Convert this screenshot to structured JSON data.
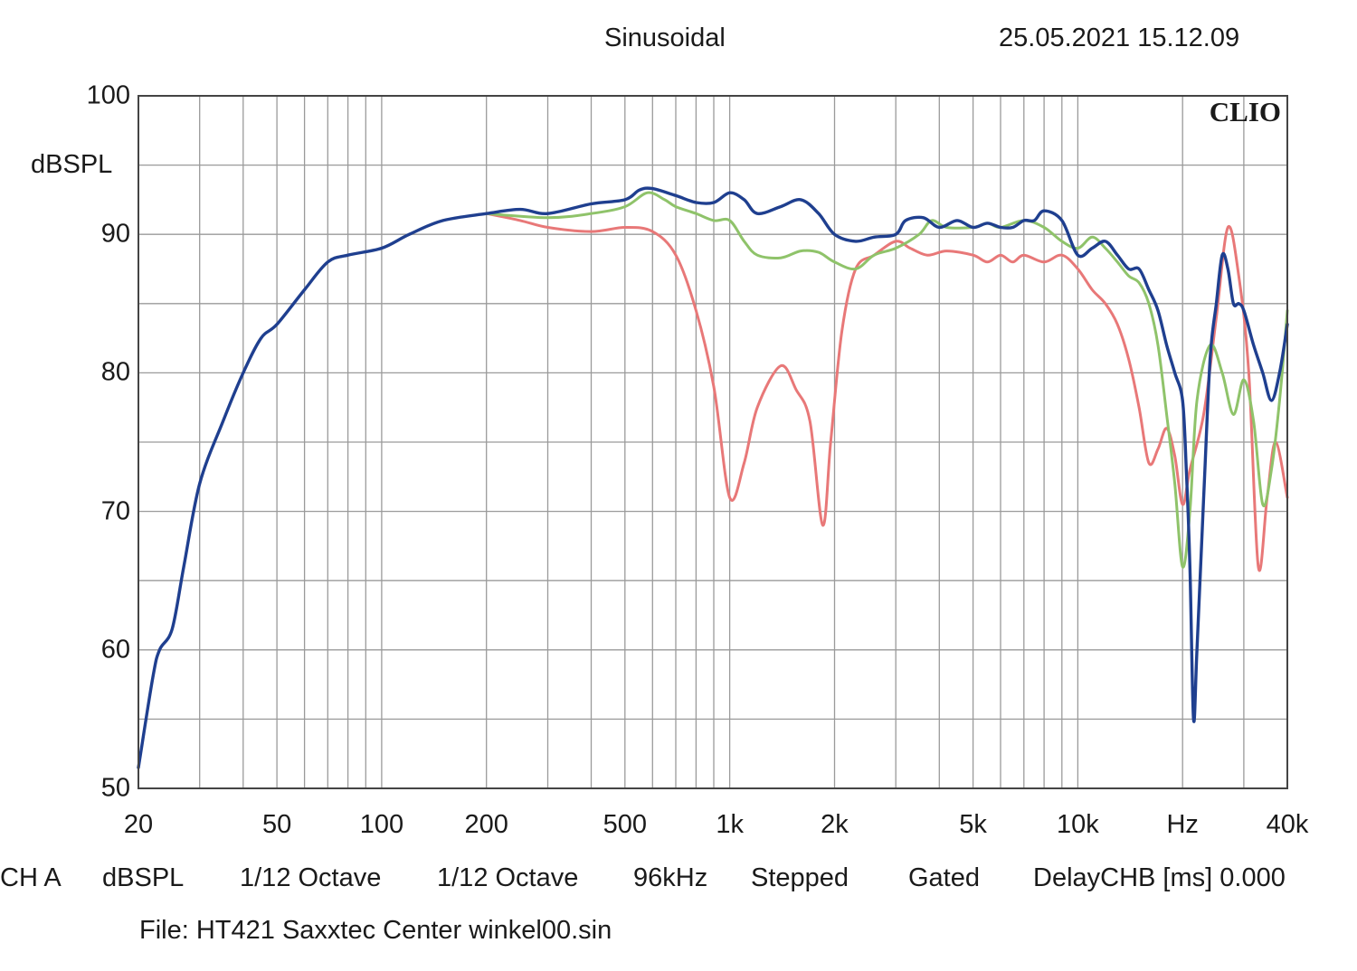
{
  "header": {
    "title": "Sinusoidal",
    "timestamp": "25.05.2021 15.12.09",
    "brand": "CLIO"
  },
  "footer": {
    "items": [
      "CH A",
      "dBSPL",
      "1/12 Octave",
      "1/12 Octave",
      "96kHz",
      "Stepped",
      "Gated",
      "DelayCHB [ms] 0.000"
    ],
    "file": "File: HT421 Saxxtec Center winkel00.sin"
  },
  "chart_data": {
    "type": "line",
    "title": "Sinusoidal",
    "xlabel": "Hz",
    "ylabel": "dBSPL",
    "xscale": "log",
    "xlim": [
      20,
      40000
    ],
    "ylim": [
      50,
      100
    ],
    "grid": true,
    "ytick_labels": [
      "100",
      "90",
      "80",
      "70",
      "60",
      "50"
    ],
    "ytick_values": [
      100,
      90,
      80,
      70,
      60,
      50
    ],
    "xtick_labels": [
      "20",
      "50",
      "100",
      "200",
      "500",
      "1k",
      "2k",
      "5k",
      "10k",
      "Hz",
      "40k"
    ],
    "xtick_values": [
      20,
      50,
      100,
      200,
      500,
      1000,
      2000,
      5000,
      10000,
      20000,
      40000
    ],
    "series": [
      {
        "color": "#e87878",
        "points": [
          [
            200,
            91.5
          ],
          [
            250,
            91.0
          ],
          [
            300,
            90.5
          ],
          [
            400,
            90.2
          ],
          [
            500,
            90.5
          ],
          [
            600,
            90.2
          ],
          [
            700,
            88.5
          ],
          [
            800,
            84.5
          ],
          [
            900,
            79
          ],
          [
            1000,
            71
          ],
          [
            1100,
            73.5
          ],
          [
            1200,
            77.5
          ],
          [
            1400,
            80.5
          ],
          [
            1550,
            78.8
          ],
          [
            1700,
            76.5
          ],
          [
            1850,
            69
          ],
          [
            1950,
            75
          ],
          [
            2100,
            83
          ],
          [
            2300,
            87.5
          ],
          [
            2600,
            88.5
          ],
          [
            3000,
            89.5
          ],
          [
            3300,
            89
          ],
          [
            3700,
            88.5
          ],
          [
            4200,
            88.8
          ],
          [
            5000,
            88.5
          ],
          [
            5500,
            88
          ],
          [
            6000,
            88.5
          ],
          [
            6500,
            88
          ],
          [
            7000,
            88.5
          ],
          [
            8000,
            88
          ],
          [
            9000,
            88.5
          ],
          [
            10000,
            87.5
          ],
          [
            11000,
            86
          ],
          [
            12000,
            85
          ],
          [
            13000,
            83.5
          ],
          [
            14000,
            81
          ],
          [
            15000,
            77.5
          ],
          [
            16000,
            73.5
          ],
          [
            17000,
            74.5
          ],
          [
            18000,
            76
          ],
          [
            19000,
            74
          ],
          [
            20000,
            70.5
          ],
          [
            21000,
            73
          ],
          [
            23000,
            77
          ],
          [
            25000,
            84
          ],
          [
            27000,
            90.5
          ],
          [
            29000,
            87
          ],
          [
            31000,
            80
          ],
          [
            33000,
            66
          ],
          [
            35000,
            71
          ],
          [
            37000,
            75
          ],
          [
            40000,
            71
          ]
        ]
      },
      {
        "color": "#8fc36a",
        "points": [
          [
            200,
            91.5
          ],
          [
            300,
            91.2
          ],
          [
            400,
            91.5
          ],
          [
            500,
            92
          ],
          [
            580,
            93
          ],
          [
            650,
            92.5
          ],
          [
            700,
            92
          ],
          [
            800,
            91.5
          ],
          [
            900,
            91
          ],
          [
            1000,
            91
          ],
          [
            1100,
            89.5
          ],
          [
            1200,
            88.5
          ],
          [
            1400,
            88.3
          ],
          [
            1600,
            88.8
          ],
          [
            1800,
            88.7
          ],
          [
            2000,
            88
          ],
          [
            2300,
            87.5
          ],
          [
            2600,
            88.5
          ],
          [
            3000,
            89
          ],
          [
            3500,
            90
          ],
          [
            3800,
            91
          ],
          [
            4200,
            90.5
          ],
          [
            5000,
            90.5
          ],
          [
            5500,
            90.8
          ],
          [
            6000,
            90.5
          ],
          [
            7000,
            91
          ],
          [
            8000,
            90.5
          ],
          [
            9000,
            89.5
          ],
          [
            10000,
            89
          ],
          [
            11000,
            89.8
          ],
          [
            12000,
            89
          ],
          [
            13000,
            88
          ],
          [
            14000,
            87
          ],
          [
            15000,
            86.5
          ],
          [
            16000,
            85
          ],
          [
            17000,
            82
          ],
          [
            18000,
            77
          ],
          [
            19000,
            72
          ],
          [
            20000,
            66
          ],
          [
            21000,
            70
          ],
          [
            22000,
            78
          ],
          [
            24000,
            82
          ],
          [
            26000,
            80
          ],
          [
            28000,
            77
          ],
          [
            30000,
            79.5
          ],
          [
            32000,
            76.5
          ],
          [
            34000,
            70.5
          ],
          [
            36000,
            73
          ],
          [
            38000,
            78
          ],
          [
            40000,
            84.5
          ]
        ]
      },
      {
        "color": "#1f3f8f",
        "points": [
          [
            20,
            51.5
          ],
          [
            22,
            58
          ],
          [
            23,
            60
          ],
          [
            25,
            61.5
          ],
          [
            27,
            66
          ],
          [
            30,
            72
          ],
          [
            35,
            76.5
          ],
          [
            40,
            80
          ],
          [
            45,
            82.5
          ],
          [
            50,
            83.5
          ],
          [
            60,
            86
          ],
          [
            70,
            88
          ],
          [
            80,
            88.5
          ],
          [
            100,
            89
          ],
          [
            120,
            90
          ],
          [
            150,
            91
          ],
          [
            200,
            91.5
          ],
          [
            250,
            91.8
          ],
          [
            300,
            91.5
          ],
          [
            400,
            92.2
          ],
          [
            500,
            92.5
          ],
          [
            550,
            93.2
          ],
          [
            600,
            93.3
          ],
          [
            700,
            92.8
          ],
          [
            800,
            92.3
          ],
          [
            900,
            92.3
          ],
          [
            1000,
            93
          ],
          [
            1100,
            92.5
          ],
          [
            1200,
            91.5
          ],
          [
            1400,
            92
          ],
          [
            1600,
            92.5
          ],
          [
            1800,
            91.5
          ],
          [
            2000,
            90
          ],
          [
            2300,
            89.5
          ],
          [
            2600,
            89.8
          ],
          [
            3000,
            90
          ],
          [
            3200,
            91
          ],
          [
            3600,
            91.2
          ],
          [
            4000,
            90.5
          ],
          [
            4500,
            91
          ],
          [
            5000,
            90.5
          ],
          [
            5500,
            90.8
          ],
          [
            6000,
            90.5
          ],
          [
            6500,
            90.5
          ],
          [
            7000,
            91
          ],
          [
            7500,
            91
          ],
          [
            8000,
            91.7
          ],
          [
            9000,
            91
          ],
          [
            10000,
            88.5
          ],
          [
            11000,
            89
          ],
          [
            12000,
            89.5
          ],
          [
            13000,
            88.5
          ],
          [
            14000,
            87.5
          ],
          [
            15000,
            87.5
          ],
          [
            16000,
            86
          ],
          [
            17000,
            84.5
          ],
          [
            18000,
            82
          ],
          [
            19000,
            80
          ],
          [
            20000,
            78
          ],
          [
            20500,
            73
          ],
          [
            21000,
            66
          ],
          [
            21500,
            55
          ],
          [
            22000,
            60
          ],
          [
            23000,
            71
          ],
          [
            24000,
            81
          ],
          [
            25000,
            85
          ],
          [
            26000,
            88.5
          ],
          [
            27000,
            87.5
          ],
          [
            28000,
            85
          ],
          [
            29000,
            85
          ],
          [
            30000,
            84.5
          ],
          [
            32000,
            82
          ],
          [
            34000,
            80
          ],
          [
            36000,
            78
          ],
          [
            38000,
            80
          ],
          [
            40000,
            83.5
          ]
        ]
      }
    ]
  }
}
